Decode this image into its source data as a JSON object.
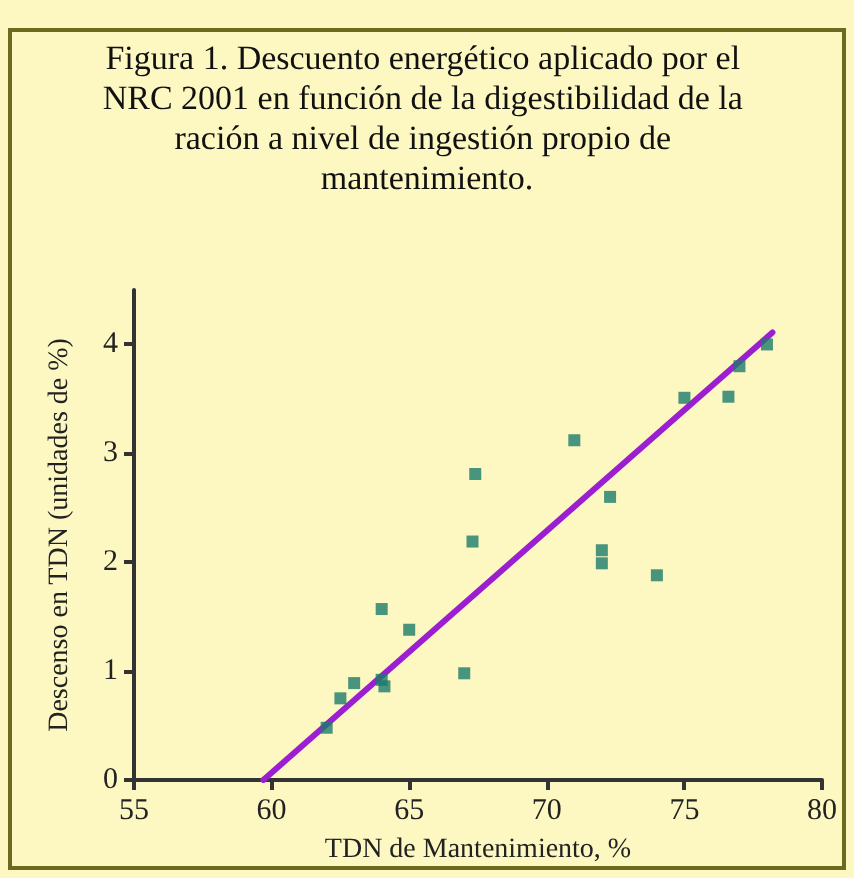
{
  "chart_data": {
    "type": "scatter",
    "title": "Figura 1. Descuento energético aplicado por el NRC 2001 en función de la digestibilidad de la ración a nivel de ingestión propio de mantenimiento.",
    "xlabel": "TDN de Mantenimiento, %",
    "ylabel": "Descenso en TDN (unidades de %)",
    "xlim": [
      55,
      80
    ],
    "xticks": [
      55,
      60,
      65,
      70,
      75,
      80
    ],
    "ylim": [
      0,
      4.5
    ],
    "yticks": [
      0,
      1,
      2,
      3,
      4
    ],
    "grid": false,
    "marker": "square",
    "series": [
      {
        "color": "#1a7a6a",
        "x": [
          62,
          62.5,
          63,
          64,
          64.1,
          64,
          65,
          67,
          67.3,
          67.4,
          71,
          72,
          72,
          72.3,
          74,
          75,
          76.6,
          77,
          78
        ],
        "values": [
          0.48,
          0.75,
          0.89,
          0.92,
          0.86,
          1.57,
          1.38,
          0.98,
          2.19,
          2.81,
          3.12,
          2.11,
          1.99,
          2.6,
          1.88,
          3.51,
          3.52,
          3.8,
          4.0
        ]
      },
      {
        "type": "line",
        "color": "#9b1fd0",
        "marker": "none",
        "line_style": "solid",
        "x": [
          59.7,
          78.2
        ],
        "values": [
          0,
          4.11
        ]
      }
    ]
  }
}
